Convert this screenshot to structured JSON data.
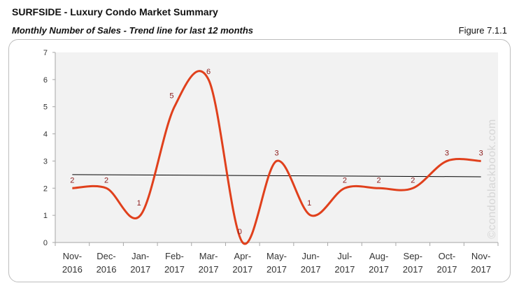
{
  "header": {
    "title": "SURFSIDE - Luxury Condo Market Summary",
    "subtitle": "Monthly Number of Sales - Trend line for last 12 months",
    "figure_id": "Figure 7.1.1"
  },
  "watermark": "©condoblackbook.com",
  "chart_data": {
    "type": "line",
    "categories": [
      [
        "Nov-",
        "2016"
      ],
      [
        "Dec-",
        "2016"
      ],
      [
        "Jan-",
        "2017"
      ],
      [
        "Feb-",
        "2017"
      ],
      [
        "Mar-",
        "2017"
      ],
      [
        "Apr-",
        "2017"
      ],
      [
        "May-",
        "2017"
      ],
      [
        "Jun-",
        "2017"
      ],
      [
        "Jul-",
        "2017"
      ],
      [
        "Aug-",
        "2017"
      ],
      [
        "Sep-",
        "2017"
      ],
      [
        "Oct-",
        "2017"
      ],
      [
        "Nov-",
        "2017"
      ]
    ],
    "series": [
      {
        "values": [
          2,
          2,
          1,
          5,
          6,
          0,
          3,
          1,
          2,
          2,
          2,
          3,
          3
        ],
        "color": "#e0401c"
      }
    ],
    "trendline": {
      "start": 2.5,
      "end": 2.42,
      "color": "#000000"
    },
    "ylim": [
      0,
      7
    ],
    "yticks": [
      0,
      1,
      2,
      3,
      4,
      5,
      6,
      7
    ],
    "data_label_color": "#8b1a1a",
    "plot_background": "#f2f2f2",
    "grid": false,
    "legend": "none"
  }
}
